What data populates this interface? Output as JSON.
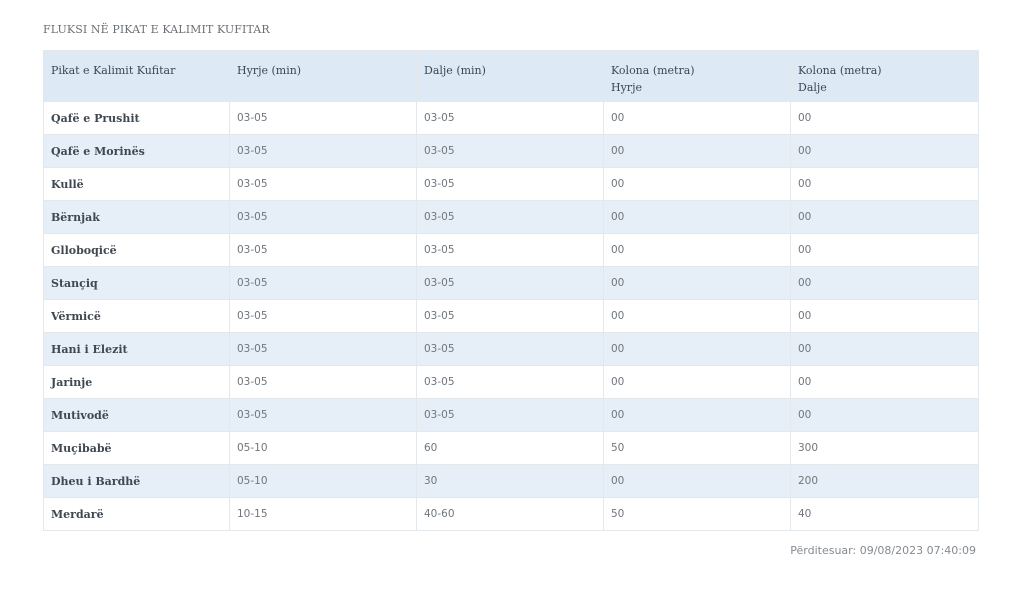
{
  "title": "FLUKSI NË PIKAT E KALIMIT KUFITAR",
  "table": {
    "headers": [
      "Pikat e Kalimit Kufitar",
      "Hyrje (min)",
      "Dalje (min)",
      "Kolona (metra)\nHyrje",
      "Kolona (metra)\nDalje"
    ],
    "rows": [
      [
        "Qafë e Prushit",
        "03-05",
        "03-05",
        "00",
        "00"
      ],
      [
        "Qafë e Morinës",
        "03-05",
        "03-05",
        "00",
        "00"
      ],
      [
        "Kullë",
        "03-05",
        "03-05",
        "00",
        "00"
      ],
      [
        "Bërnjak",
        "03-05",
        "03-05",
        "00",
        "00"
      ],
      [
        "Glloboqicë",
        "03-05",
        "03-05",
        "00",
        "00"
      ],
      [
        "Stançiq",
        "03-05",
        "03-05",
        "00",
        "00"
      ],
      [
        "Vërmicë",
        "03-05",
        "03-05",
        "00",
        "00"
      ],
      [
        "Hani i Elezit",
        "03-05",
        "03-05",
        "00",
        "00"
      ],
      [
        "Jarinje",
        "03-05",
        "03-05",
        "00",
        "00"
      ],
      [
        "Mutivodë",
        "03-05",
        "03-05",
        "00",
        "00"
      ],
      [
        "Muçibabë",
        "05-10",
        "60",
        "50",
        "300"
      ],
      [
        "Dheu i Bardhë",
        "05-10",
        "30",
        "00",
        "200"
      ],
      [
        "Merdarë",
        "10-15",
        "40-60",
        "50",
        "40"
      ]
    ]
  },
  "updated": "Përditesuar: 09/08/2023 07:40:09",
  "colors": {
    "header_bg": "#dde9f4",
    "stripe_bg": "#e6eff7",
    "border": "#e3e8ec"
  }
}
